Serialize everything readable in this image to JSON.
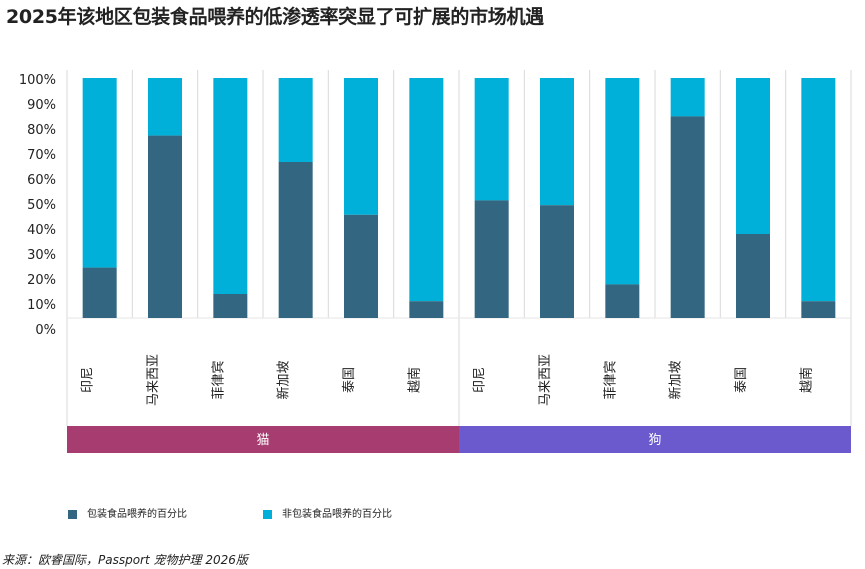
{
  "title": "2025年该地区包装食品喂养的低渗透率突显了可扩展的市场机遇",
  "chart_data": {
    "type": "bar",
    "stacked": true,
    "ylim": [
      0,
      100
    ],
    "yticks": [
      "0%",
      "10%",
      "20%",
      "30%",
      "40%",
      "50%",
      "60%",
      "70%",
      "80%",
      "90%",
      "100%"
    ],
    "groups": [
      {
        "label": "猫",
        "color": "#a63c6f",
        "categories": [
          "印尼",
          "马来西亚",
          "菲律宾",
          "新加坡",
          "泰国",
          "越南"
        ],
        "packaged": [
          21,
          76,
          10,
          65,
          43,
          7
        ]
      },
      {
        "label": "狗",
        "color": "#6a5acd",
        "categories": [
          "印尼",
          "马来西亚",
          "菲律宾",
          "新加坡",
          "泰国",
          "越南"
        ],
        "packaged": [
          49,
          47,
          14,
          84,
          35,
          7
        ]
      }
    ],
    "series": [
      {
        "name": "包装食品喂养的百分比",
        "color": "#336680"
      },
      {
        "name": "非包装食品喂养的百分比",
        "color": "#00b0d8"
      }
    ],
    "legend": "bottom-left",
    "grid": false
  },
  "source": "来源：欧睿国际，Passport 宠物护理 2026版"
}
